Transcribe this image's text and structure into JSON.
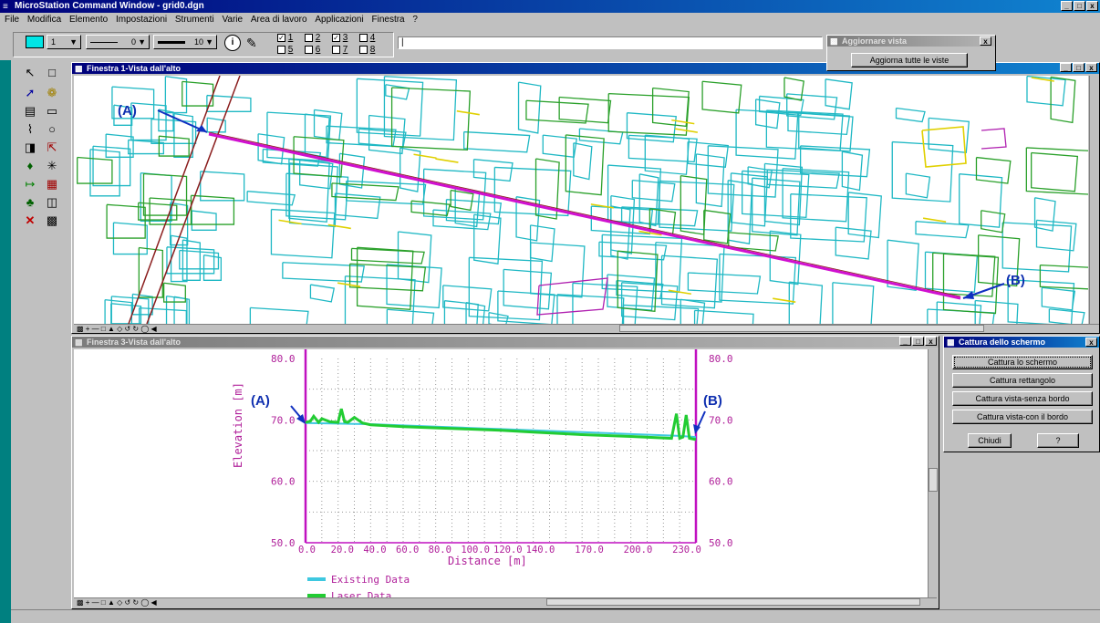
{
  "app": {
    "title": "MicroStation Command Window - grid0.dgn"
  },
  "menu": [
    "File",
    "Modifica",
    "Elemento",
    "Impostazioni",
    "Strumenti",
    "Varie",
    "Area di lavoro",
    "Applicazioni",
    "Finestra",
    "?"
  ],
  "toolbar": {
    "level_value": "1",
    "style_value": "0",
    "weight_value": "10",
    "view_checks": [
      {
        "n": "1",
        "checked": true
      },
      {
        "n": "2",
        "checked": false
      },
      {
        "n": "3",
        "checked": true
      },
      {
        "n": "4",
        "checked": false
      },
      {
        "n": "5",
        "checked": false
      },
      {
        "n": "6",
        "checked": false
      },
      {
        "n": "7",
        "checked": false
      },
      {
        "n": "8",
        "checked": false
      }
    ],
    "command_value": "|"
  },
  "update_dialog": {
    "title": "Aggiornare vista",
    "button": "Aggiorna tutte le viste"
  },
  "view1": {
    "title": "Finestra 1-Vista dall'alto",
    "label_a": "(A)",
    "label_b": "(B)"
  },
  "view3": {
    "title": "Finestra 3-Vista dall'alto",
    "label_a": "(A)",
    "label_b": "(B)"
  },
  "capture_dialog": {
    "title": "Cattura dello schermo",
    "buttons": [
      "Cattura lo schermo",
      "Cattura rettangolo",
      "Cattura vista-senza bordo",
      "Cattura vista-con il bordo"
    ],
    "close": "Chiudi",
    "help": "?"
  },
  "chart_data": {
    "type": "line",
    "xlabel": "Distance [m]",
    "ylabel": "Elevation [m]",
    "xlim": [
      0,
      240
    ],
    "ylim": [
      50,
      80
    ],
    "x_ticks": [
      "0.0",
      "20.0",
      "40.0",
      "60.0",
      "80.0",
      "100.0",
      "120.0",
      "140.0",
      "170.0",
      "200.0",
      "230.0"
    ],
    "y_ticks": [
      "80.0",
      "70.0",
      "60.0",
      "50.0"
    ],
    "grid": true,
    "legend_position": "bottom-left",
    "series": [
      {
        "name": "Existing Data",
        "color": "#3ec8e0",
        "x": [
          0,
          20,
          40,
          60,
          80,
          100,
          120,
          140,
          170,
          200,
          230,
          240
        ],
        "y": [
          69.5,
          69.4,
          69.3,
          69.1,
          68.9,
          68.7,
          68.5,
          68.3,
          68.0,
          67.7,
          67.4,
          67.2
        ]
      },
      {
        "name": "Laser Data",
        "color": "#22cc33",
        "x": [
          0,
          3,
          5,
          8,
          10,
          15,
          20,
          22,
          24,
          26,
          30,
          35,
          40,
          60,
          80,
          100,
          120,
          140,
          170,
          200,
          225,
          228,
          230,
          232,
          234,
          236,
          240
        ],
        "y": [
          69.6,
          69.8,
          70.6,
          69.6,
          70.2,
          69.7,
          69.6,
          71.8,
          69.7,
          69.6,
          70.4,
          69.5,
          69.2,
          68.9,
          68.7,
          68.5,
          68.3,
          68.0,
          67.6,
          67.3,
          67.0,
          71.0,
          67.0,
          67.2,
          70.8,
          67.0,
          66.8
        ]
      }
    ]
  }
}
